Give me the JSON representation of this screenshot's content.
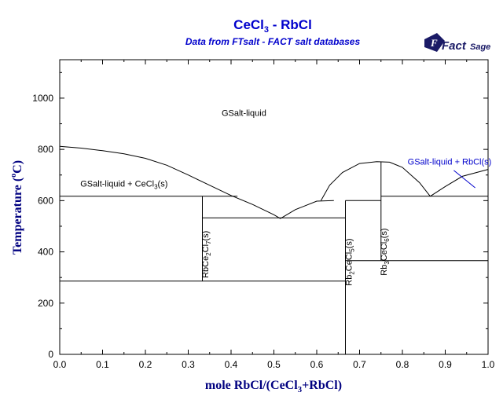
{
  "chart_data": {
    "type": "line",
    "title": "CeCl",
    "title_sub": "3",
    "title_rest": " - RbCl",
    "subtitle": "Data from FTsalt - FACT salt databases",
    "xlabel": "mole RbCl/(CeCl",
    "xlabel_sub": "3",
    "xlabel_rest": "+RbCl)",
    "ylabel": "Temperature (",
    "ylabel_deg": "o",
    "ylabel_rest": "C)",
    "xlim": [
      0,
      1
    ],
    "ylim": [
      0,
      1150
    ],
    "xticks": [
      "0.0",
      "0.1",
      "0.2",
      "0.3",
      "0.4",
      "0.5",
      "0.6",
      "0.7",
      "0.8",
      "0.9",
      "1.0"
    ],
    "yticks": [
      "0",
      "200",
      "400",
      "600",
      "800",
      "1000"
    ],
    "grid": false,
    "series": [
      {
        "x": [
          0.0,
          0.05,
          0.1,
          0.15,
          0.2,
          0.25,
          0.3,
          0.35,
          0.4,
          0.45,
          0.5,
          0.515
        ],
        "y": [
          812,
          805,
          795,
          783,
          765,
          738,
          700,
          660,
          620,
          585,
          545,
          530
        ]
      },
      {
        "x": [
          0.515,
          0.55,
          0.6,
          0.64
        ],
        "y": [
          530,
          565,
          598,
          600
        ]
      },
      {
        "x": [
          0.61,
          0.63,
          0.66,
          0.7,
          0.74,
          0.77,
          0.8,
          0.84,
          0.865
        ],
        "y": [
          600,
          660,
          710,
          745,
          752,
          750,
          730,
          670,
          617
        ]
      },
      {
        "x": [
          0.865,
          0.9,
          0.94,
          1.0
        ],
        "y": [
          617,
          655,
          695,
          722
        ]
      },
      {
        "x": [
          0.0,
          0.415
        ],
        "y": [
          617,
          617
        ]
      },
      {
        "x": [
          0.333,
          0.667
        ],
        "y": [
          533,
          533
        ]
      },
      {
        "x": [
          0.0,
          0.667
        ],
        "y": [
          286,
          286
        ]
      },
      {
        "x": [
          0.333,
          0.333
        ],
        "y": [
          286,
          617
        ]
      },
      {
        "x": [
          0.667,
          0.667
        ],
        "y": [
          0,
          600
        ]
      },
      {
        "x": [
          0.667,
          0.75
        ],
        "y": [
          600,
          600
        ]
      },
      {
        "x": [
          0.667,
          0.75
        ],
        "y": [
          366,
          366
        ]
      },
      {
        "x": [
          0.75,
          0.75
        ],
        "y": [
          366,
          752
        ]
      },
      {
        "x": [
          0.75,
          1.0
        ],
        "y": [
          617,
          617
        ]
      },
      {
        "x": [
          0.75,
          1.0
        ],
        "y": [
          366,
          366
        ]
      }
    ],
    "annotations": [
      {
        "id": "liquid",
        "text": "GSalt-liquid",
        "x": 0.43,
        "y": 930
      },
      {
        "id": "liq-cecl3",
        "text": "GSalt-liquid + CeCl",
        "sub": "3",
        "rest": "(s)",
        "x": 0.15,
        "y": 655
      },
      {
        "id": "rbce2cl7",
        "text": "RbCe",
        "parts": [
          "2",
          "Cl",
          "7",
          "(s)"
        ],
        "x": 0.347,
        "y": 390
      },
      {
        "id": "rb2cecl5",
        "text": "Rb",
        "parts": [
          "2",
          "CeCl",
          "5",
          "(s)"
        ],
        "x": 0.682,
        "y": 360
      },
      {
        "id": "rb3cecl6",
        "text": "Rb",
        "parts": [
          "3",
          "CeCl",
          "6",
          "(s)"
        ],
        "x": 0.763,
        "y": 400
      },
      {
        "id": "liq-rbcl",
        "text": "GSalt-liquid + RbCl(s)",
        "x": 0.91,
        "y": 740
      }
    ],
    "leader_line": {
      "x": [
        0.92,
        0.97
      ],
      "y": [
        718,
        650
      ]
    }
  },
  "logo": {
    "text_main": "Fact",
    "text_sage": "Sage",
    "mark": "F"
  },
  "colors": {
    "title": "#0000cc",
    "axis_label": "#000080",
    "lines": "#000000",
    "logo": "#1a1a66"
  }
}
